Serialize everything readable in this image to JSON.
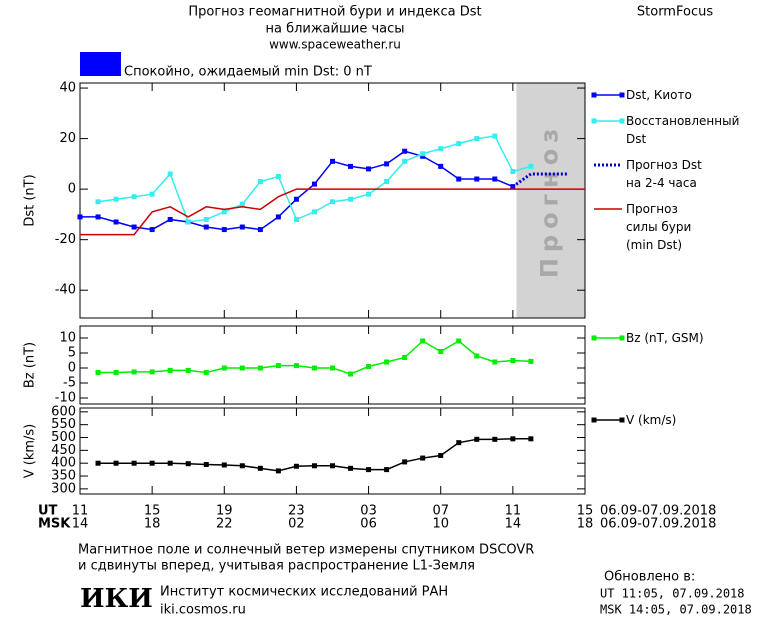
{
  "header": {
    "title_line1": "Прогноз геомагнитной бури и индекса Dst",
    "title_line2": "на ближайшие часы",
    "url": "www.spaceweather.ru",
    "brand": "StormFocus"
  },
  "status": {
    "color": "#0000ff",
    "text": "Спокойно, ожидаемый min Dst: 0 nT"
  },
  "time_axis": {
    "ut_label": "UT",
    "msk_label": "MSK",
    "date_range_ut": "06.09-07.09.2018",
    "date_range_msk": "06.09-07.09.2018",
    "msk_ticks": [
      {
        "value": 0,
        "label": "14"
      },
      {
        "value": 4,
        "label": "18"
      },
      {
        "value": 8,
        "label": "22"
      },
      {
        "value": 12,
        "label": "02"
      },
      {
        "value": 16,
        "label": "06"
      },
      {
        "value": 20,
        "label": "10"
      },
      {
        "value": 24,
        "label": "14"
      },
      {
        "value": 28,
        "label": "18"
      }
    ]
  },
  "chart_data": [
    {
      "type": "line",
      "ylabel": "Dst (nT)",
      "xlim": [
        0,
        28
      ],
      "ylim": [
        -51,
        42
      ],
      "yticks": [
        -40,
        -20,
        0,
        20,
        40
      ],
      "forecast_band": {
        "label": "Прогноз",
        "color": "#d3d3d3",
        "x": [
          24.2,
          28
        ]
      },
      "series": [
        {
          "name": "Dst, Киото",
          "color": "#0000ff",
          "marker": "square",
          "dashed": false,
          "x": [
            0,
            1,
            2,
            3,
            4,
            5,
            6,
            7,
            8,
            9,
            10,
            11,
            12,
            13,
            14,
            15,
            16,
            17,
            18,
            19,
            20,
            21,
            22,
            23,
            24
          ],
          "values": [
            -11,
            -11,
            -13,
            -15,
            -16,
            -12,
            -13,
            -15,
            -16,
            -15,
            -16,
            -11,
            -4,
            2,
            11,
            9,
            8,
            10,
            15,
            13,
            9,
            4,
            4,
            4,
            1
          ]
        },
        {
          "name": "Восстановленный\nDst",
          "color": "#33eeee",
          "marker": "square",
          "dashed": false,
          "x": [
            1,
            2,
            3,
            4,
            5,
            6,
            7,
            8,
            9,
            10,
            11,
            12,
            13,
            14,
            15,
            16,
            17,
            18,
            19,
            20,
            21,
            22,
            23,
            24,
            25
          ],
          "values": [
            -5,
            -4,
            -3,
            -2,
            6,
            -13,
            -12,
            -9,
            -6,
            3,
            5,
            -12,
            -9,
            -5,
            -4,
            -2,
            3,
            11,
            14,
            16,
            18,
            20,
            21,
            7,
            9
          ]
        },
        {
          "name": "Прогноз Dst\nна 2-4 часа",
          "color": "#0000cc",
          "marker": "none",
          "dashed": true,
          "x": [
            24,
            25,
            26,
            27
          ],
          "values": [
            1,
            6,
            6,
            6
          ]
        },
        {
          "name": "Прогноз\nсилы бури\n(min Dst)",
          "color": "#cc0000",
          "marker": "none",
          "dashed": false,
          "x": [
            0,
            3,
            4,
            5,
            6,
            7,
            8,
            9,
            10,
            11,
            12,
            28
          ],
          "values": [
            -18,
            -18,
            -9,
            -7,
            -11,
            -7,
            -8,
            -7,
            -8,
            -3,
            0,
            0
          ]
        }
      ]
    },
    {
      "type": "line",
      "ylabel": "Bz (nT)",
      "xlim": [
        0,
        28
      ],
      "ylim": [
        -12,
        14
      ],
      "yticks": [
        -10,
        -5,
        0,
        5,
        10
      ],
      "series": [
        {
          "name": "Bz (nT, GSM)",
          "color": "#00ee00",
          "marker": "square",
          "dashed": false,
          "x": [
            1,
            2,
            3,
            4,
            5,
            6,
            7,
            8,
            9,
            10,
            11,
            12,
            13,
            14,
            15,
            16,
            17,
            18,
            19,
            20,
            21,
            22,
            23,
            24,
            25
          ],
          "values": [
            -1.5,
            -1.5,
            -1.3,
            -1.3,
            -0.8,
            -0.8,
            -1.5,
            0,
            0,
            0,
            0.8,
            0.8,
            0,
            0,
            -2,
            0.5,
            2,
            3.5,
            9,
            5.5,
            9,
            4,
            2,
            2.5,
            2.2
          ]
        }
      ]
    },
    {
      "type": "line",
      "ylabel": "V (km/s)",
      "xlim": [
        0,
        28
      ],
      "ylim": [
        280,
        615
      ],
      "yticks": [
        300,
        350,
        400,
        450,
        500,
        550,
        600
      ],
      "xticks": [
        {
          "value": 0,
          "label": "11"
        },
        {
          "value": 4,
          "label": "15"
        },
        {
          "value": 8,
          "label": "19"
        },
        {
          "value": 12,
          "label": "23"
        },
        {
          "value": 16,
          "label": "03"
        },
        {
          "value": 20,
          "label": "07"
        },
        {
          "value": 24,
          "label": "11"
        },
        {
          "value": 28,
          "label": "15"
        }
      ],
      "series": [
        {
          "name": "V (km/s)",
          "color": "#000000",
          "marker": "square",
          "dashed": false,
          "x": [
            1,
            2,
            3,
            4,
            5,
            6,
            7,
            8,
            9,
            10,
            11,
            12,
            13,
            14,
            15,
            16,
            17,
            18,
            19,
            20,
            21,
            22,
            23,
            24,
            25
          ],
          "values": [
            400,
            400,
            400,
            400,
            400,
            398,
            395,
            393,
            390,
            380,
            370,
            388,
            390,
            390,
            380,
            375,
            375,
            405,
            420,
            430,
            480,
            493,
            493,
            495,
            495
          ]
        }
      ]
    }
  ],
  "footer": {
    "note_line1": "Магнитное поле и солнечный ветер измерены спутником DSCOVR",
    "note_line2": "и сдвинуты вперед, учитывая распространение L1-Земля",
    "logo": "ИКИ",
    "institute": "Институт космических исследований РАН",
    "site": "iki.cosmos.ru",
    "updated_label": "Обновлено в:",
    "updated_ut": "UT  11:05, 07.09.2018",
    "updated_msk": "MSK 14:05, 07.09.2018"
  }
}
